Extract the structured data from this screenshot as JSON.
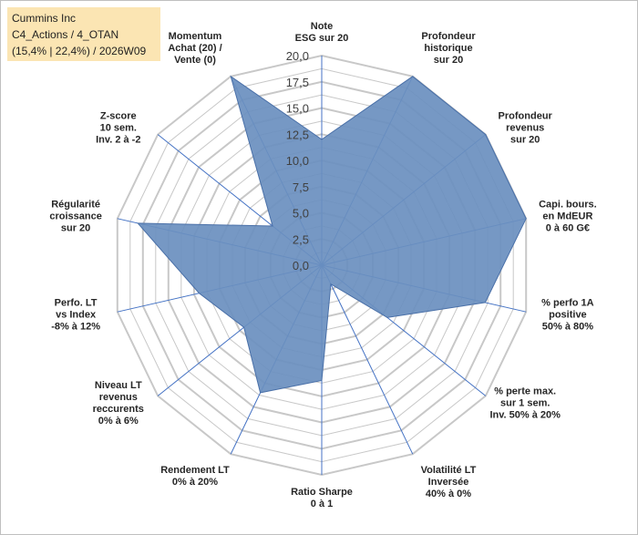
{
  "title_box": {
    "line1": "Cummins Inc",
    "line2": "C4_Actions / 4_OTAN",
    "line3": "(15,4% | 22,4%) / 2026W09"
  },
  "colors": {
    "fill": "#6a8fbf",
    "stroke": "#4a70a8",
    "grid": "#c8c8c8",
    "spoke": "#4472c4",
    "title_bg": "#fbe5b3"
  },
  "chart_data": {
    "type": "radar",
    "rmin": 0,
    "rmax": 20,
    "major_step": 2.5,
    "minor_step": 1.25,
    "tick_labels": [
      "0,0",
      "2,5",
      "5,0",
      "7,5",
      "10,0",
      "12,5",
      "15,0",
      "17,5",
      "20,0"
    ],
    "axes": [
      {
        "label": [
          "Note",
          "ESG sur 20"
        ],
        "value": 12
      },
      {
        "label": [
          "Profondeur",
          "historique",
          "sur 20"
        ],
        "value": 20
      },
      {
        "label": [
          "Profondeur",
          "revenus",
          "sur 20"
        ],
        "value": 20
      },
      {
        "label": [
          "Capi. bours.",
          "en MdEUR",
          "0 à 60 G€"
        ],
        "value": 20
      },
      {
        "label": [
          "% perfo 1A",
          "positive",
          "50% à 80%"
        ],
        "value": 16
      },
      {
        "label": [
          "% perte max.",
          "sur 1 sem.",
          "Inv. 50% à 20%"
        ],
        "value": 8
      },
      {
        "label": [
          "Volatilité LT",
          "Inversée",
          "40% à 0%"
        ],
        "value": 2
      },
      {
        "label": [
          "Ratio Sharpe",
          "0 à 1"
        ],
        "value": 11
      },
      {
        "label": [
          "Rendement LT",
          "0% à 20%"
        ],
        "value": 13.5
      },
      {
        "label": [
          "Niveau LT",
          "revenus",
          "reccurents",
          "0% à 6%"
        ],
        "value": 9.5
      },
      {
        "label": [
          "Perfo. LT",
          "vs Index",
          "-8% à 12%"
        ],
        "value": 12
      },
      {
        "label": [
          "Régularité",
          "croissance",
          "sur 20"
        ],
        "value": 18
      },
      {
        "label": [
          "Z-score",
          "10 sem.",
          "Inv. 2 à -2"
        ],
        "value": 6
      },
      {
        "label": [
          "Momentum",
          "Achat (20) /",
          "Vente (0)"
        ],
        "value": 20
      }
    ]
  }
}
